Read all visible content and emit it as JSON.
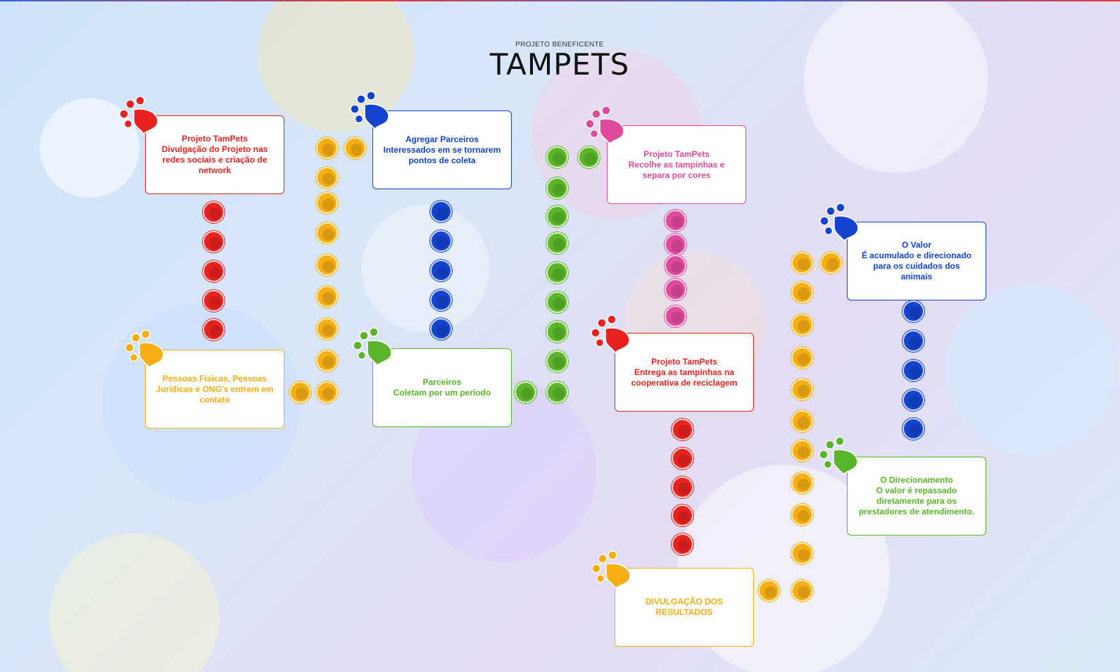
{
  "header": {
    "subtitle": "PROJETO BENEFICENTE",
    "logo": "TAMPETS"
  },
  "colors": {
    "red": "#e8221f",
    "yellow": "#f6ae14",
    "blue": "#1443cf",
    "green": "#5bb52a",
    "pink": "#e04a9c"
  },
  "steps": [
    {
      "text": "Projeto TamPets\nDivulgação do Projeto nas redes sociais e criação de network",
      "color": "red",
      "icon": "paw-icon"
    },
    {
      "text": "Pessoas Físicas, Pessoas Jurídicas e ONG's entram em contato",
      "color": "yellow",
      "icon": "paw-icon"
    },
    {
      "text": "Agregar Parceiros\nInteressados em se tornarem pontos de coleta",
      "color": "blue",
      "icon": "paw-icon"
    },
    {
      "text": "Parceiros\nColetam por um período",
      "color": "green",
      "icon": "paw-icon"
    },
    {
      "text": "Projeto TamPets\nRecolhe as tampinhas e separa por cores",
      "color": "pink",
      "icon": "paw-icon"
    },
    {
      "text": "Projeto TamPets\nEntrega as tampinhas na cooperativa de reciclagem",
      "color": "red",
      "icon": "paw-icon"
    },
    {
      "text": "DIVULGAÇÃO DOS RESULTADOS",
      "color": "yellow",
      "icon": "paw-icon"
    },
    {
      "text": "O Valor\nÉ acumulado e direcionado para os cuidados dos animais",
      "color": "blue",
      "icon": "paw-icon"
    },
    {
      "text": "O Direcionamento\nO valor é repassado diretamente para os prestadores de atendimento.",
      "color": "green",
      "icon": "paw-icon"
    }
  ]
}
